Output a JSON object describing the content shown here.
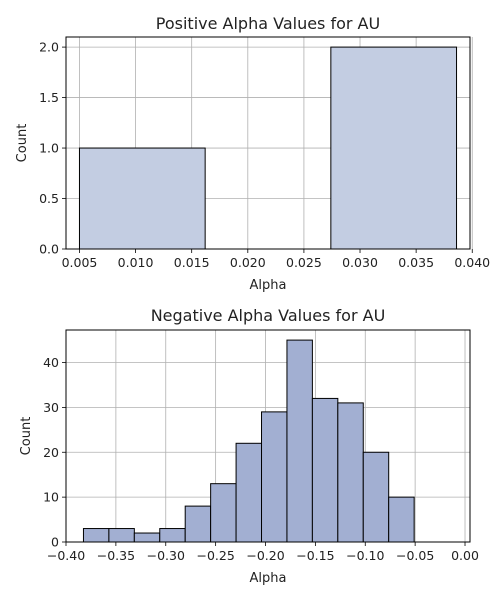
{
  "chart_data": [
    {
      "type": "bar",
      "title": "Positive Alpha Values for AU",
      "xlabel": "Alpha",
      "ylabel": "Count",
      "xlim": [
        0.0038,
        0.0398
      ],
      "ylim": [
        0,
        2.1
      ],
      "x_ticks": [
        "0.005",
        "0.010",
        "0.015",
        "0.020",
        "0.025",
        "0.030",
        "0.035",
        "0.040"
      ],
      "y_ticks": [
        "0.0",
        "0.5",
        "1.0",
        "1.5",
        "2.0"
      ],
      "grid": true,
      "bar_color": "#c3cde2",
      "bins": [
        {
          "x0": 0.005,
          "x1": 0.0162,
          "count": 1
        },
        {
          "x0": 0.0162,
          "x1": 0.0274,
          "count": 0
        },
        {
          "x0": 0.0274,
          "x1": 0.0386,
          "count": 2
        }
      ]
    },
    {
      "type": "bar",
      "title": "Negative Alpha Values for AU",
      "xlabel": "Alpha",
      "ylabel": "Count",
      "xlim": [
        -0.4,
        0.005
      ],
      "ylim": [
        0,
        47.25
      ],
      "x_ticks": [
        "−0.40",
        "−0.35",
        "−0.30",
        "−0.25",
        "−0.20",
        "−0.15",
        "−0.10",
        "−0.05",
        "0.00"
      ],
      "y_ticks": [
        "0",
        "10",
        "20",
        "30",
        "40"
      ],
      "grid": true,
      "bar_color": "#a2afd2",
      "bins": [
        {
          "x0": -0.3825,
          "x1": -0.357,
          "count": 3
        },
        {
          "x0": -0.357,
          "x1": -0.3315,
          "count": 3
        },
        {
          "x0": -0.3315,
          "x1": -0.306,
          "count": 2
        },
        {
          "x0": -0.306,
          "x1": -0.2805,
          "count": 3
        },
        {
          "x0": -0.2805,
          "x1": -0.255,
          "count": 8
        },
        {
          "x0": -0.255,
          "x1": -0.2295,
          "count": 13
        },
        {
          "x0": -0.2295,
          "x1": -0.204,
          "count": 22
        },
        {
          "x0": -0.204,
          "x1": -0.1785,
          "count": 29
        },
        {
          "x0": -0.1785,
          "x1": -0.153,
          "count": 45
        },
        {
          "x0": -0.153,
          "x1": -0.1275,
          "count": 32
        },
        {
          "x0": -0.1275,
          "x1": -0.102,
          "count": 31
        },
        {
          "x0": -0.102,
          "x1": -0.0765,
          "count": 20
        },
        {
          "x0": -0.0765,
          "x1": -0.051,
          "count": 10
        }
      ]
    }
  ]
}
